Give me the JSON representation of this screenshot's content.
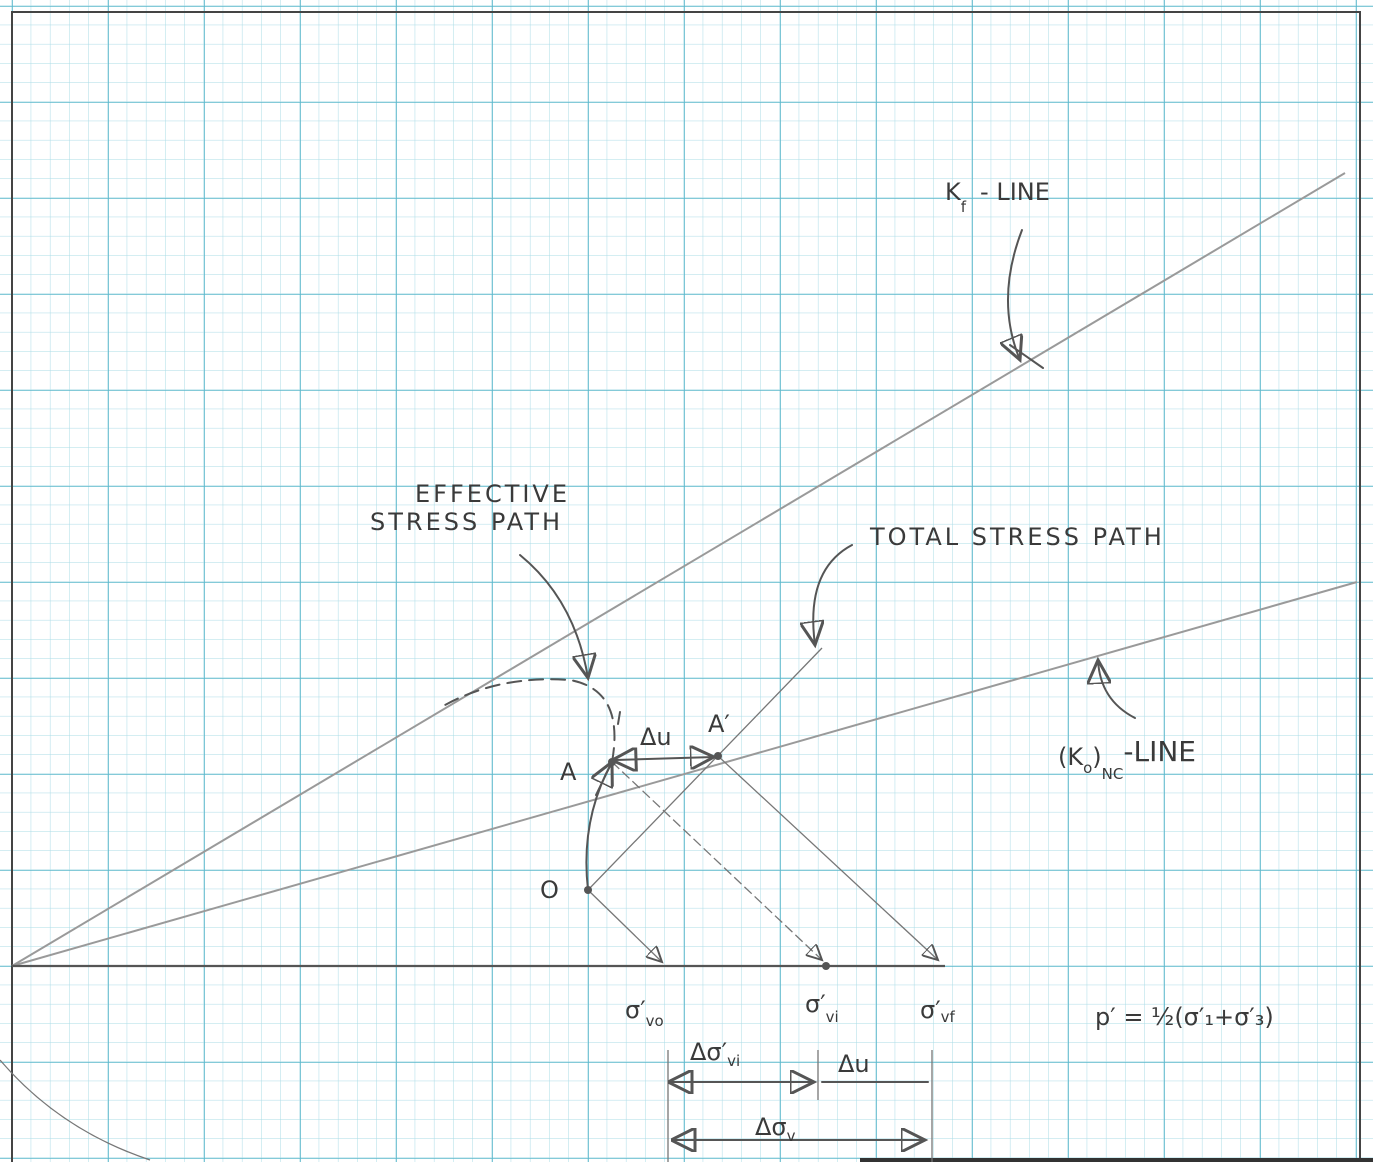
{
  "kf_line": {
    "main": "K",
    "sub": "f",
    "rest": "- LINE"
  },
  "effective_stress_path": [
    "EFFECTIVE",
    "STRESS PATH"
  ],
  "total_stress_path": "TOTAL STRESS PATH",
  "k0_line": {
    "open": "(K",
    "sub0": "o",
    "close": ")",
    "sub": "NC",
    "rest": "-LINE"
  },
  "points": {
    "o": "O",
    "a": "A",
    "a_prime": "A′"
  },
  "delta_u": "Δu",
  "axis": {
    "sigma_v0": {
      "main": "σ′",
      "sub": "vo"
    },
    "sigma_vi": {
      "main": "σ′",
      "sub": "vi"
    },
    "sigma_vf": {
      "main": "σ′",
      "sub": "vf"
    },
    "p_label": "p′ = ½(σ′₁+σ′₃)"
  },
  "dimensions": {
    "delta_sigma_vi": {
      "main": "Δσ′",
      "sub": "vi"
    },
    "delta_u": "Δu",
    "delta_sigma_v": {
      "main": "Δσ",
      "sub": "v"
    }
  }
}
